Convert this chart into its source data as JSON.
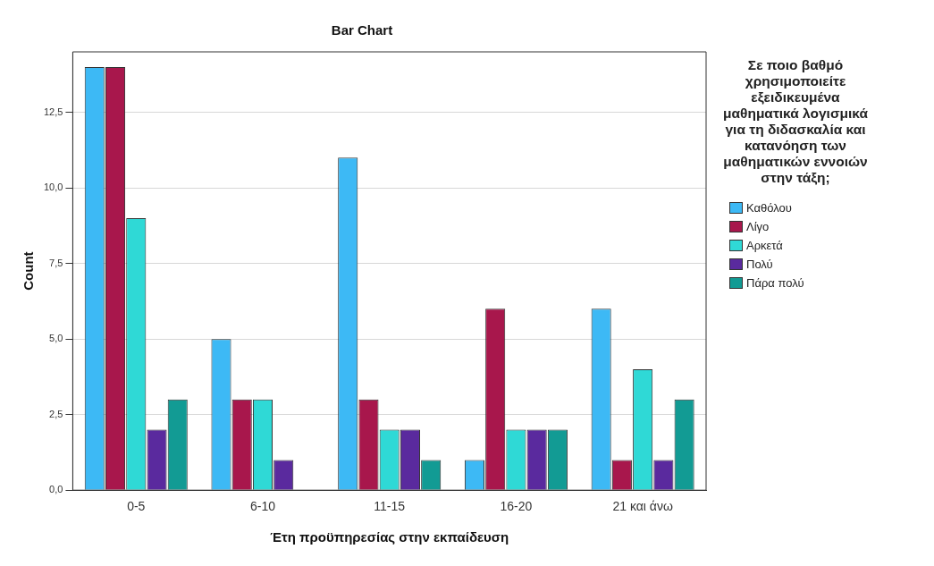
{
  "chart_data": {
    "type": "bar",
    "title": "Bar Chart",
    "xlabel": "Έτη προϋπηρεσίας στην εκπαίδευση",
    "ylabel": "Count",
    "legend_title": "Σε ποιο βαθμό χρησιμοποιείτε εξειδικευμένα μαθηματικά λογισμικά για τη διδασκαλία και κατανόηση των μαθηματικών εννοιών στην τάξη;",
    "categories": [
      "0-5",
      "6-10",
      "11-15",
      "16-20",
      "21 και άνω"
    ],
    "series": [
      {
        "name": "Καθόλου",
        "color": "#3db9f5",
        "values": [
          14,
          5,
          11,
          1,
          6
        ]
      },
      {
        "name": "Λίγο",
        "color": "#a8174c",
        "values": [
          14,
          3,
          3,
          6,
          1
        ]
      },
      {
        "name": "Αρκετά",
        "color": "#2fd9d6",
        "values": [
          9,
          3,
          2,
          2,
          4
        ]
      },
      {
        "name": "Πολύ",
        "color": "#5a2a9e",
        "values": [
          2,
          1,
          2,
          2,
          1
        ]
      },
      {
        "name": "Πάρα πολύ",
        "color": "#129b94",
        "values": [
          3,
          null,
          1,
          2,
          3
        ]
      }
    ],
    "ylim": [
      0,
      14.5
    ],
    "yticks": [
      {
        "value": 0,
        "label": "0,0"
      },
      {
        "value": 2.5,
        "label": "2,5"
      },
      {
        "value": 5,
        "label": "5,0"
      },
      {
        "value": 7.5,
        "label": "7,5"
      },
      {
        "value": 10,
        "label": "10,0"
      },
      {
        "value": 12.5,
        "label": "12,5"
      }
    ],
    "grid": "y",
    "legend": "right"
  }
}
